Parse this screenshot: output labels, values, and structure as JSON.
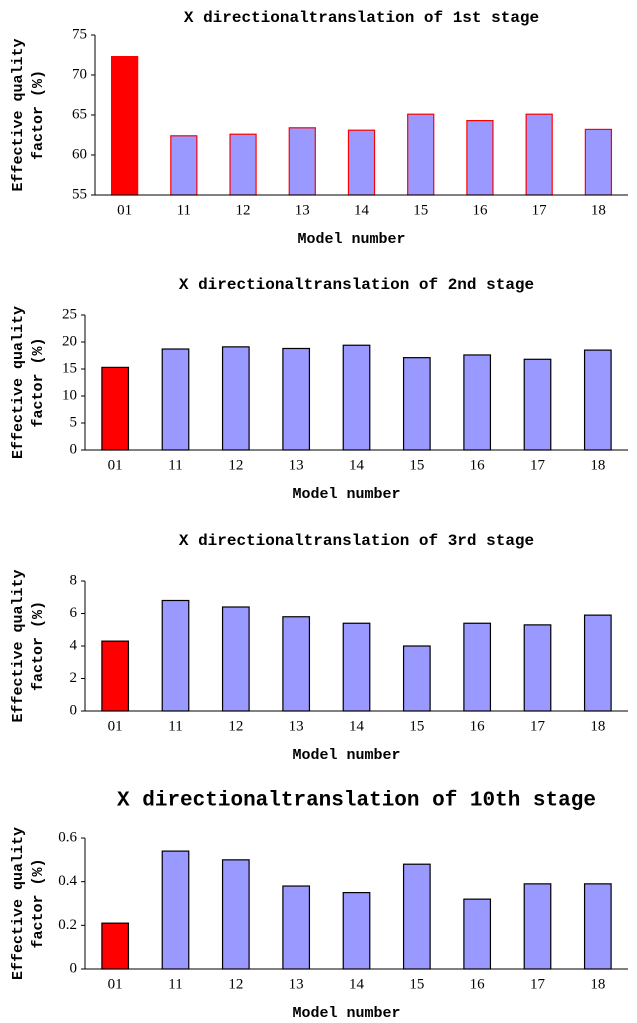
{
  "chart_data": [
    {
      "type": "bar",
      "title": "X directionaltranslation of 1st stage",
      "xlabel": "Model number",
      "ylabel": [
        "Effective quality",
        "factor (%)"
      ],
      "categories": [
        "01",
        "11",
        "12",
        "13",
        "14",
        "15",
        "16",
        "17",
        "18"
      ],
      "values": [
        72.3,
        62.4,
        62.6,
        63.4,
        63.1,
        65.1,
        64.3,
        65.1,
        63.2
      ],
      "colors": [
        "#ff0000",
        "#9999ff",
        "#9999ff",
        "#9999ff",
        "#9999ff",
        "#9999ff",
        "#9999ff",
        "#9999ff",
        "#9999ff"
      ],
      "edge_color": "#ff0000",
      "ylim": [
        55,
        75
      ],
      "yticks": [
        55,
        60,
        65,
        70,
        75
      ]
    },
    {
      "type": "bar",
      "title": "X directionaltranslation of 2nd stage",
      "xlabel": "Model number",
      "ylabel": [
        "Effective quality",
        "factor (%)"
      ],
      "categories": [
        "01",
        "11",
        "12",
        "13",
        "14",
        "15",
        "16",
        "17",
        "18"
      ],
      "values": [
        15.3,
        18.7,
        19.1,
        18.8,
        19.4,
        17.1,
        17.6,
        16.8,
        18.5
      ],
      "colors": [
        "#ff0000",
        "#9999ff",
        "#9999ff",
        "#9999ff",
        "#9999ff",
        "#9999ff",
        "#9999ff",
        "#9999ff",
        "#9999ff"
      ],
      "edge_color": "#000000",
      "ylim": [
        0,
        25
      ],
      "yticks": [
        0,
        5,
        10,
        15,
        20,
        25
      ]
    },
    {
      "type": "bar",
      "title": "X directionaltranslation of 3rd stage",
      "xlabel": "Model number",
      "ylabel": [
        "Effective quality",
        "factor (%)"
      ],
      "categories": [
        "01",
        "11",
        "12",
        "13",
        "14",
        "15",
        "16",
        "17",
        "18"
      ],
      "values": [
        4.3,
        6.8,
        6.4,
        5.8,
        5.4,
        4.0,
        5.4,
        5.3,
        5.9
      ],
      "colors": [
        "#ff0000",
        "#9999ff",
        "#9999ff",
        "#9999ff",
        "#9999ff",
        "#9999ff",
        "#9999ff",
        "#9999ff",
        "#9999ff"
      ],
      "edge_color": "#000000",
      "ylim": [
        0,
        8
      ],
      "yticks": [
        0,
        2,
        4,
        6,
        8
      ]
    },
    {
      "type": "bar",
      "title": "X directionaltranslation of 10th stage",
      "xlabel": "Model number",
      "ylabel": [
        "Effective quality",
        "factor (%)"
      ],
      "categories": [
        "01",
        "11",
        "12",
        "13",
        "14",
        "15",
        "16",
        "17",
        "18"
      ],
      "values": [
        0.21,
        0.54,
        0.5,
        0.38,
        0.35,
        0.48,
        0.32,
        0.39,
        0.39
      ],
      "colors": [
        "#ff0000",
        "#9999ff",
        "#9999ff",
        "#9999ff",
        "#9999ff",
        "#9999ff",
        "#9999ff",
        "#9999ff",
        "#9999ff"
      ],
      "edge_color": "#000000",
      "ylim": [
        0,
        0.6
      ],
      "yticks": [
        0,
        0.2,
        0.4,
        0.6
      ]
    }
  ]
}
